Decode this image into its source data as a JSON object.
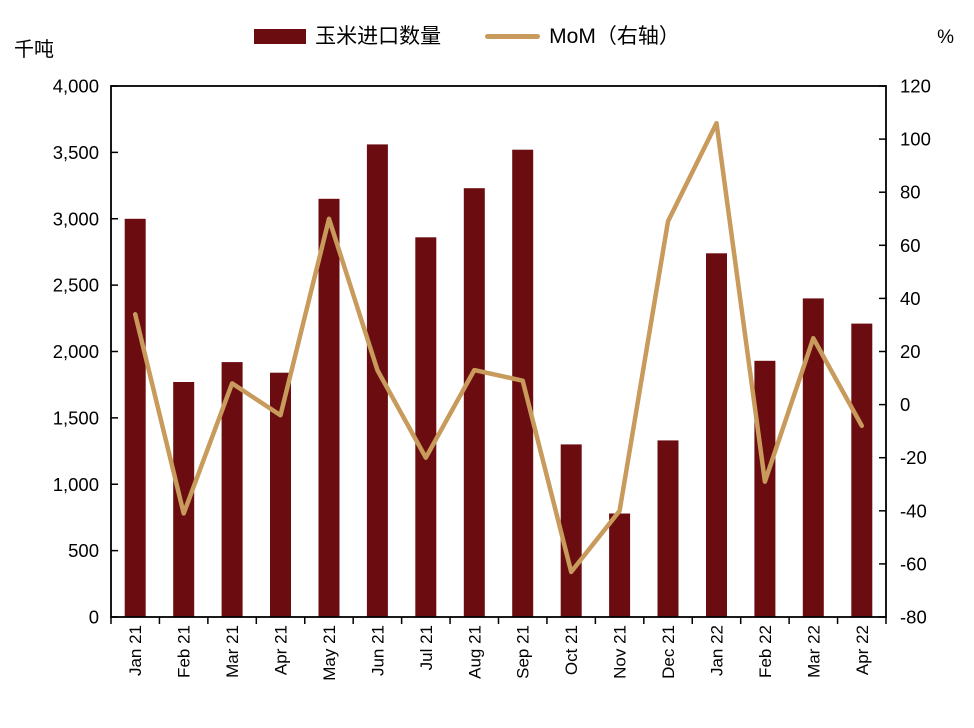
{
  "colors": {
    "bar": "#6B0D10",
    "line": "#C89A5C",
    "axis": "#000000",
    "text": "#000000",
    "background": "#FFFFFF"
  },
  "chart_data": {
    "type": "bar",
    "subtype": "bar+line-dual-axis",
    "categories": [
      "Jan 21",
      "Feb 21",
      "Mar 21",
      "Apr 21",
      "May 21",
      "Jun 21",
      "Jul 21",
      "Aug 21",
      "Sep 21",
      "Oct 21",
      "Nov 21",
      "Dec 21",
      "Jan 22",
      "Feb 22",
      "Mar 22",
      "Apr 22"
    ],
    "series": [
      {
        "name": "玉米进口数量",
        "chart_type": "bar",
        "axis": "left",
        "values": [
          3000,
          1770,
          1920,
          1840,
          3150,
          3560,
          2860,
          3230,
          3520,
          1300,
          780,
          1330,
          2740,
          1930,
          2400,
          2210
        ]
      },
      {
        "name": "MoM（右轴）",
        "chart_type": "line",
        "axis": "right",
        "values": [
          34,
          -41,
          8,
          -4,
          70,
          13,
          -20,
          13,
          9,
          -63,
          -40,
          69,
          106,
          -29,
          25,
          -8
        ]
      }
    ],
    "left_axis": {
      "label": "千吨",
      "min": 0,
      "max": 4000,
      "step": 500,
      "tick_labels": [
        "4,000",
        "3,500",
        "3,000",
        "2,500",
        "2,000",
        "1,500",
        "1,000",
        "500",
        "0"
      ]
    },
    "right_axis": {
      "label": "%",
      "min": -80,
      "max": 120,
      "step": 20,
      "tick_labels": [
        "120",
        "100",
        "80",
        "60",
        "40",
        "20",
        "0",
        "-20",
        "-40",
        "-60",
        "-80"
      ]
    },
    "legend_position": "top",
    "grid": false
  }
}
